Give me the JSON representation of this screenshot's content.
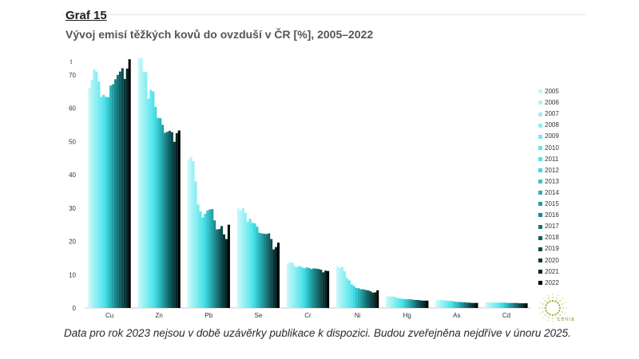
{
  "figure_label": "Graf 15",
  "figure_title": "Vývoj emisí těžkých kovů do ovzduší v ČR [%], 2005–2022",
  "footnote": "Data pro rok 2023 nejsou v době uzávěrky publikace k dispozici. Budou zveřejněna nejdříve v únoru 2025.",
  "logo_text": "cenia",
  "colors": {
    "years": [
      "#c4f7f9",
      "#b0f4f6",
      "#9df1f4",
      "#8aeef2",
      "#76ebf0",
      "#62e7ed",
      "#4fe4eb",
      "#3fd8e0",
      "#33c7cd",
      "#29b4ba",
      "#229fa4",
      "#1c898e",
      "#167478",
      "#115f62",
      "#0c4b4e",
      "#083839",
      "#042526",
      "#000000"
    ]
  },
  "chart_data": {
    "type": "bar",
    "title": "Vývoj emisí těžkých kovů do ovzduší v ČR [%], 2005–2022",
    "ylabel": "t",
    "xlabel": "",
    "ylim": [
      0,
      75
    ],
    "yticks": [
      0,
      10,
      20,
      30,
      40,
      50,
      60,
      70
    ],
    "grid": false,
    "legend": "right",
    "categories": [
      "Cu",
      "Zn",
      "Pb",
      "Se",
      "Cr",
      "Ni",
      "Hg",
      "As",
      "Cd"
    ],
    "series": [
      {
        "name": "2005",
        "values": [
          66.2,
          75.0,
          44.6,
          29.9,
          13.4,
          12.5,
          3.5,
          2.4,
          1.7
        ]
      },
      {
        "name": "2006",
        "values": [
          68.5,
          75.0,
          45.3,
          29.3,
          13.8,
          12.0,
          3.5,
          2.3,
          1.6
        ]
      },
      {
        "name": "2007",
        "values": [
          71.6,
          71.0,
          44.1,
          30.0,
          13.5,
          12.3,
          3.4,
          2.4,
          1.7
        ]
      },
      {
        "name": "2008",
        "values": [
          71.0,
          70.8,
          38.0,
          28.6,
          12.5,
          11.0,
          3.4,
          2.3,
          1.6
        ]
      },
      {
        "name": "2009",
        "values": [
          68.0,
          62.9,
          31.1,
          25.9,
          12.3,
          9.0,
          3.1,
          2.2,
          1.6
        ]
      },
      {
        "name": "2010",
        "values": [
          63.4,
          65.5,
          29.0,
          26.8,
          12.6,
          8.3,
          2.9,
          2.1,
          1.6
        ]
      },
      {
        "name": "2011",
        "values": [
          64.0,
          65.0,
          27.2,
          25.6,
          12.2,
          7.1,
          2.8,
          2.1,
          1.6
        ]
      },
      {
        "name": "2012",
        "values": [
          63.4,
          60.4,
          28.3,
          25.4,
          11.9,
          6.6,
          2.7,
          2.0,
          1.6
        ]
      },
      {
        "name": "2013",
        "values": [
          63.3,
          57.1,
          29.3,
          24.4,
          12.2,
          6.0,
          2.6,
          1.9,
          1.6
        ]
      },
      {
        "name": "2014",
        "values": [
          66.8,
          57.0,
          29.6,
          22.6,
          12.0,
          5.9,
          2.6,
          1.8,
          1.5
        ]
      },
      {
        "name": "2015",
        "values": [
          67.2,
          55.0,
          29.7,
          22.4,
          11.7,
          5.6,
          2.6,
          1.8,
          1.5
        ]
      },
      {
        "name": "2016",
        "values": [
          68.7,
          52.6,
          26.3,
          22.3,
          11.9,
          5.6,
          2.5,
          1.7,
          1.5
        ]
      },
      {
        "name": "2017",
        "values": [
          70.0,
          52.9,
          23.6,
          22.2,
          11.8,
          5.4,
          2.4,
          1.7,
          1.5
        ]
      },
      {
        "name": "2018",
        "values": [
          71.0,
          53.2,
          23.7,
          22.4,
          11.7,
          5.3,
          2.4,
          1.6,
          1.5
        ]
      },
      {
        "name": "2019",
        "values": [
          72.0,
          52.8,
          24.6,
          20.7,
          11.5,
          5.0,
          2.3,
          1.6,
          1.4
        ]
      },
      {
        "name": "2020",
        "values": [
          68.8,
          49.9,
          22.1,
          17.6,
          10.7,
          4.6,
          2.2,
          1.5,
          1.4
        ]
      },
      {
        "name": "2021",
        "values": [
          71.9,
          52.5,
          20.7,
          18.3,
          11.2,
          4.7,
          2.2,
          1.5,
          1.4
        ]
      },
      {
        "name": "2022",
        "values": [
          74.7,
          53.3,
          25.0,
          19.6,
          11.1,
          5.3,
          2.2,
          1.5,
          1.4
        ]
      }
    ]
  }
}
